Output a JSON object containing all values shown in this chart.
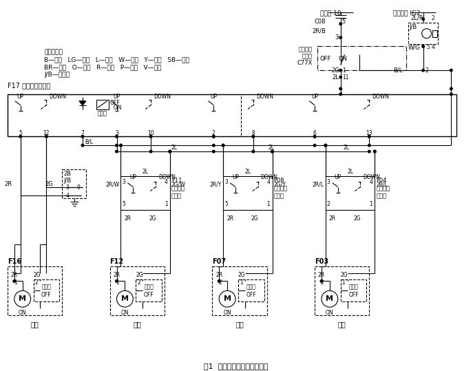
{
  "title": "图1  基础车型电动车窗线路图",
  "bg_color": "#ffffff",
  "legend_lines": [
    "线色代号：",
    "B—黑色   LG—浅绿   L—蓝色   W—白色   Y—黄色   SB—天蓝",
    "BR—棕色   O—橙色   R—红色   P—粉红   V—紫色",
    "J/B—接线盒"
  ],
  "main_switch_title": "F17 电动车窗主开关",
  "fuse_title": "易熔线 10",
  "ignition_title": "点火开关 IG2"
}
